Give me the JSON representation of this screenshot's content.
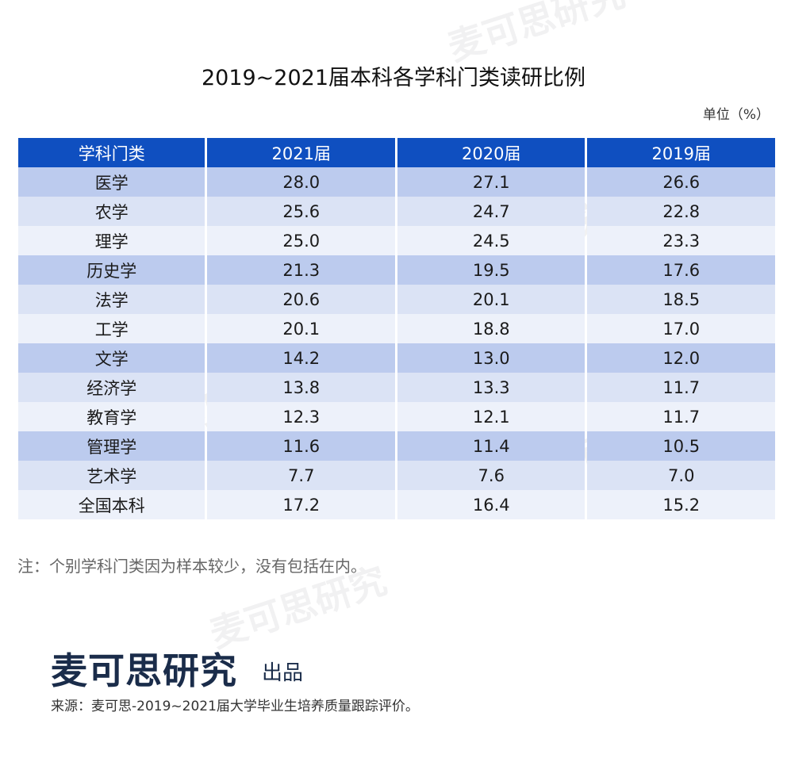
{
  "title": "2019~2021届本科各学科门类读研比例",
  "unit": "单位（%）",
  "note": "注：个别学科门类因为样本较少，没有包括在内。",
  "brand": "麦可思研究",
  "produced": "出品",
  "source": "来源：麦可思-2019~2021届大学毕业生培养质量跟踪评价。",
  "watermark": "麦可思研究",
  "colors": {
    "header": "#0f4fc0",
    "row_dark": "#bccbee",
    "row_mid": "#dbe3f5",
    "row_light": "#edf1fa"
  },
  "chart_data": {
    "type": "table",
    "columns": [
      "学科门类",
      "2021届",
      "2020届",
      "2019届"
    ],
    "rows": [
      [
        "医学",
        "28.0",
        "27.1",
        "26.6"
      ],
      [
        "农学",
        "25.6",
        "24.7",
        "22.8"
      ],
      [
        "理学",
        "25.0",
        "24.5",
        "23.3"
      ],
      [
        "历史学",
        "21.3",
        "19.5",
        "17.6"
      ],
      [
        "法学",
        "20.6",
        "20.1",
        "18.5"
      ],
      [
        "工学",
        "20.1",
        "18.8",
        "17.0"
      ],
      [
        "文学",
        "14.2",
        "13.0",
        "12.0"
      ],
      [
        "经济学",
        "13.8",
        "13.3",
        "11.7"
      ],
      [
        "教育学",
        "12.3",
        "12.1",
        "11.7"
      ],
      [
        "管理学",
        "11.6",
        "11.4",
        "10.5"
      ],
      [
        "艺术学",
        "7.7",
        "7.6",
        "7.0"
      ],
      [
        "全国本科",
        "17.2",
        "16.4",
        "15.2"
      ]
    ]
  }
}
